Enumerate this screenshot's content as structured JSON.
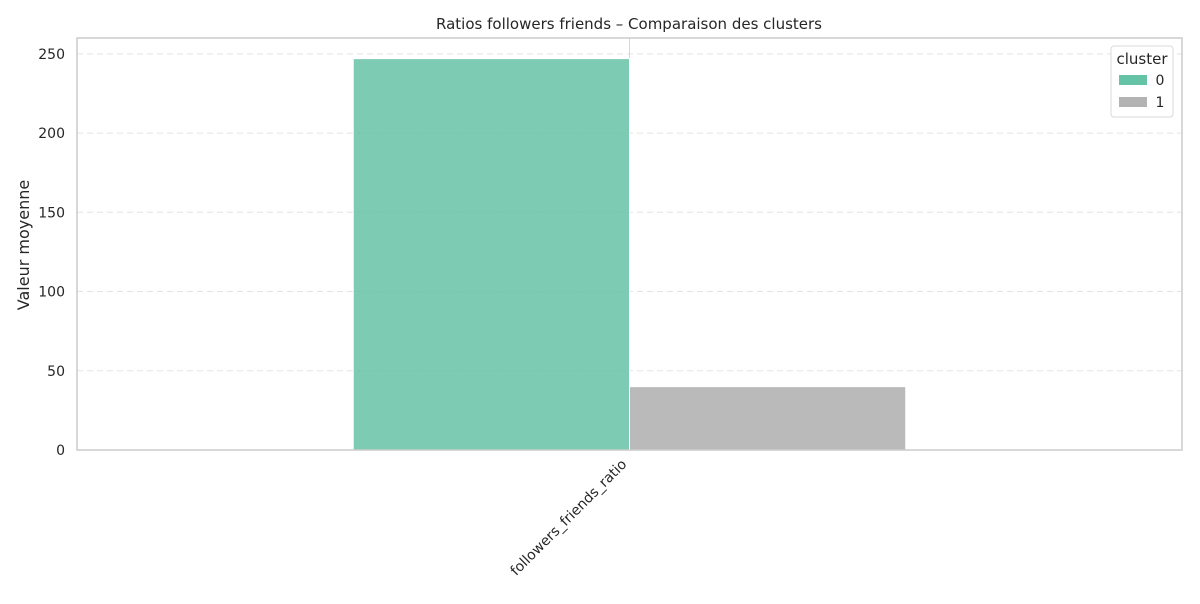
{
  "chart_data": {
    "type": "bar",
    "title": "Ratios followers friends – Comparaison des clusters",
    "xlabel": "",
    "ylabel": "Valeur moyenne",
    "categories": [
      "followers_friends_ratio"
    ],
    "series": [
      {
        "name": "0",
        "values": [
          247
        ],
        "color": "#66c2a5"
      },
      {
        "name": "1",
        "values": [
          40
        ],
        "color": "#b3b3b3"
      }
    ],
    "ylim": [
      0,
      260
    ],
    "yticks": [
      0,
      50,
      100,
      150,
      200,
      250
    ],
    "grid": true,
    "legend": {
      "title": "cluster",
      "position": "top-right"
    }
  }
}
